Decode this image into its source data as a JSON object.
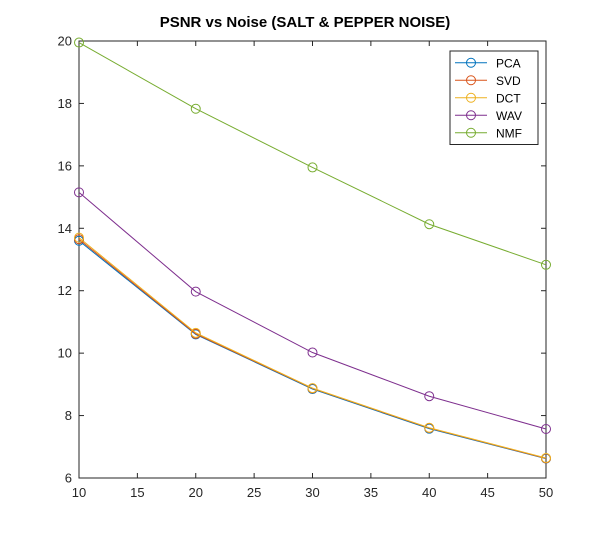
{
  "chart_data": {
    "type": "line",
    "title": "PSNR vs Noise (SALT & PEPPER NOISE)",
    "xlabel": "",
    "ylabel": "",
    "x": [
      10,
      20,
      30,
      40,
      50
    ],
    "xlim": [
      10,
      50
    ],
    "ylim": [
      6,
      20
    ],
    "xticks": [
      10,
      15,
      20,
      25,
      30,
      35,
      40,
      45,
      50
    ],
    "yticks": [
      6,
      8,
      10,
      12,
      14,
      16,
      18,
      20
    ],
    "grid": false,
    "legend_position": "top-right",
    "marker": "circle",
    "series": [
      {
        "name": "PCA",
        "color": "#0072BD",
        "values": [
          13.6,
          10.6,
          8.85,
          7.58,
          6.62
        ]
      },
      {
        "name": "SVD",
        "color": "#D95319",
        "values": [
          13.65,
          10.62,
          8.87,
          7.6,
          6.63
        ]
      },
      {
        "name": "DCT",
        "color": "#EDB120",
        "values": [
          13.7,
          10.65,
          8.88,
          7.61,
          6.64
        ]
      },
      {
        "name": "WAV",
        "color": "#7E2F8E",
        "values": [
          15.15,
          11.97,
          10.02,
          8.62,
          7.57
        ]
      },
      {
        "name": "NMF",
        "color": "#77AC30",
        "values": [
          19.95,
          17.83,
          15.95,
          14.13,
          12.83
        ]
      }
    ]
  }
}
